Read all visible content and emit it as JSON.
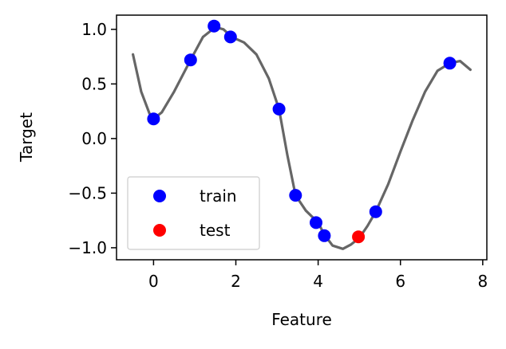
{
  "chart_data": {
    "type": "scatter",
    "title": "",
    "xlabel": "Feature",
    "ylabel": "Target",
    "xlim": [
      -0.9,
      8.1
    ],
    "ylim": [
      -1.11,
      1.13
    ],
    "grid": false,
    "legend_position": "lower-left",
    "x_ticks": [
      {
        "value": 0,
        "label": "0"
      },
      {
        "value": 2,
        "label": "2"
      },
      {
        "value": 4,
        "label": "4"
      },
      {
        "value": 6,
        "label": "6"
      },
      {
        "value": 8,
        "label": "8"
      }
    ],
    "y_ticks": [
      {
        "value": -1.0,
        "label": "−1.0"
      },
      {
        "value": -0.5,
        "label": "−0.5"
      },
      {
        "value": 0.0,
        "label": "0.0"
      },
      {
        "value": 0.5,
        "label": "0.5"
      },
      {
        "value": 1.0,
        "label": "1.0"
      }
    ],
    "curve": {
      "color": "#666666",
      "points": [
        [
          -0.5,
          0.77
        ],
        [
          -0.3,
          0.43
        ],
        [
          -0.1,
          0.23
        ],
        [
          0.0,
          0.18
        ],
        [
          0.2,
          0.24
        ],
        [
          0.5,
          0.43
        ],
        [
          0.9,
          0.72
        ],
        [
          1.2,
          0.93
        ],
        [
          1.5,
          1.02
        ],
        [
          1.7,
          1.0
        ],
        [
          1.9,
          0.93
        ],
        [
          2.2,
          0.88
        ],
        [
          2.5,
          0.77
        ],
        [
          2.8,
          0.55
        ],
        [
          3.05,
          0.27
        ],
        [
          3.25,
          -0.15
        ],
        [
          3.45,
          -0.52
        ],
        [
          3.7,
          -0.66
        ],
        [
          4.0,
          -0.77
        ],
        [
          4.15,
          -0.88
        ],
        [
          4.35,
          -0.98
        ],
        [
          4.6,
          -1.01
        ],
        [
          4.8,
          -0.97
        ],
        [
          5.0,
          -0.91
        ],
        [
          5.2,
          -0.8
        ],
        [
          5.4,
          -0.67
        ],
        [
          5.7,
          -0.42
        ],
        [
          6.0,
          -0.12
        ],
        [
          6.3,
          0.17
        ],
        [
          6.6,
          0.43
        ],
        [
          6.9,
          0.62
        ],
        [
          7.2,
          0.69
        ],
        [
          7.45,
          0.71
        ],
        [
          7.7,
          0.63
        ]
      ]
    },
    "series": [
      {
        "name": "train",
        "color": "#0000ff",
        "points": [
          [
            0.0,
            0.18
          ],
          [
            0.9,
            0.72
          ],
          [
            1.47,
            1.03
          ],
          [
            1.87,
            0.93
          ],
          [
            3.05,
            0.27
          ],
          [
            3.45,
            -0.52
          ],
          [
            3.95,
            -0.77
          ],
          [
            4.15,
            -0.89
          ],
          [
            5.4,
            -0.67
          ],
          [
            7.2,
            0.69
          ]
        ]
      },
      {
        "name": "test",
        "color": "#ff0000",
        "points": [
          [
            4.98,
            -0.9
          ]
        ]
      }
    ]
  }
}
